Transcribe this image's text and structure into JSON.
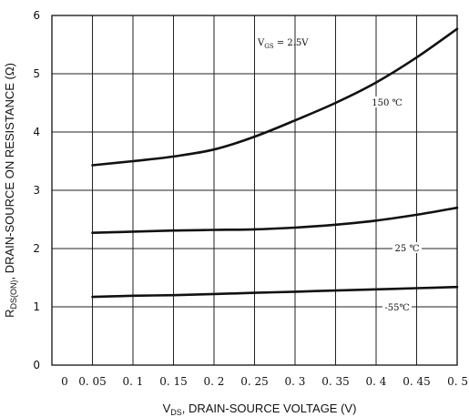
{
  "chart_data": {
    "type": "line",
    "ylim": [
      0,
      6
    ],
    "xlim": [
      0,
      0.5
    ],
    "x_ticks": [
      "0",
      "0. 05",
      "0. 1",
      "0. 15",
      "0. 2",
      "0. 25",
      "0. 3",
      "0. 35",
      "0. 4",
      "0. 45",
      "0. 5"
    ],
    "y_ticks": [
      "0",
      "1",
      "2",
      "3",
      "4",
      "5",
      "6"
    ],
    "xlabel": "V_DS, DRAIN-SOURCE VOLTAGE (V)",
    "xlabel_parts": {
      "v": "V",
      "sub": "DS",
      "rest": ", DRAIN-SOURCE VOLTAGE (V)"
    },
    "ylabel_parts": {
      "r": "R",
      "sub": "DS(ON)",
      "rest": ", DRAIN-SOURCE ON RESISTANCE (Ω)"
    },
    "grid": true,
    "condition_label": {
      "v": "V",
      "sub": "GS",
      "rest": " = 2.5V"
    },
    "series": [
      {
        "name": "150 ℃",
        "x": [
          0.05,
          0.1,
          0.15,
          0.2,
          0.25,
          0.3,
          0.35,
          0.4,
          0.45,
          0.5
        ],
        "y": [
          3.43,
          3.5,
          3.58,
          3.7,
          3.92,
          4.2,
          4.5,
          4.85,
          5.28,
          5.77
        ]
      },
      {
        "name": "25 ℃",
        "x": [
          0.05,
          0.1,
          0.15,
          0.2,
          0.25,
          0.3,
          0.35,
          0.4,
          0.45,
          0.5
        ],
        "y": [
          2.27,
          2.29,
          2.31,
          2.32,
          2.33,
          2.36,
          2.41,
          2.48,
          2.58,
          2.7
        ]
      },
      {
        "name": "-55℃",
        "x": [
          0.05,
          0.1,
          0.15,
          0.2,
          0.25,
          0.3,
          0.35,
          0.4,
          0.45,
          0.5
        ],
        "y": [
          1.17,
          1.19,
          1.2,
          1.22,
          1.24,
          1.26,
          1.28,
          1.3,
          1.32,
          1.34
        ]
      }
    ]
  }
}
